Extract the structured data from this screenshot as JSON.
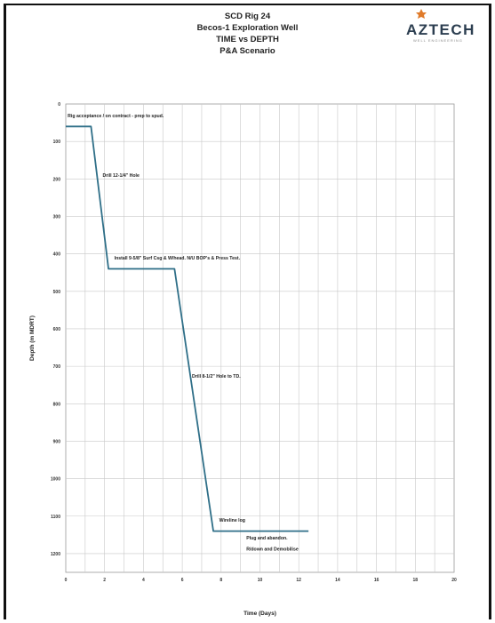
{
  "logo": {
    "text": "AZTECH",
    "sub": "WELL ENGINEERING"
  },
  "chart_data": {
    "type": "line",
    "title_lines": [
      "SCD Rig 24",
      "Becos-1 Exploration Well",
      "TIME vs DEPTH",
      "P&A Scenario"
    ],
    "xlabel": "Time (Days)",
    "ylabel": "Depth (m MDRT)",
    "xlim": [
      0,
      20
    ],
    "ylim": [
      0,
      1250
    ],
    "y_inverted": true,
    "x_ticks": [
      "0",
      "2",
      "4",
      "6",
      "8",
      "10",
      "12",
      "14",
      "16",
      "18",
      "20"
    ],
    "y_ticks": [
      "0",
      "100",
      "200",
      "300",
      "400",
      "500",
      "600",
      "700",
      "800",
      "900",
      "1000",
      "1100",
      "1200"
    ],
    "grid": true,
    "series": [
      {
        "color": "#2f6f88",
        "x": [
          0,
          1.3,
          2.2,
          5.6,
          7.6,
          12.5
        ],
        "y": [
          60,
          60,
          440,
          440,
          1140,
          1140
        ]
      }
    ],
    "annotations": [
      {
        "text": "Rig acceptance / on contract - prep to spud.",
        "x": 0.1,
        "y": 35
      },
      {
        "text": "Drill 12-1/4\" Hole",
        "x": 1.9,
        "y": 195
      },
      {
        "text": "Install 9-5/8\" Surf Csg & W/head. N/U BOP's & Press Test.",
        "x": 2.5,
        "y": 415
      },
      {
        "text": "Drill 8-1/2\" Hole to TD.",
        "x": 6.5,
        "y": 730
      },
      {
        "text": "Wireline log",
        "x": 7.9,
        "y": 1115
      },
      {
        "text": "Plug and abandon.",
        "x": 9.3,
        "y": 1162
      },
      {
        "text": "R/down and Demobilise",
        "x": 9.3,
        "y": 1192
      }
    ]
  }
}
